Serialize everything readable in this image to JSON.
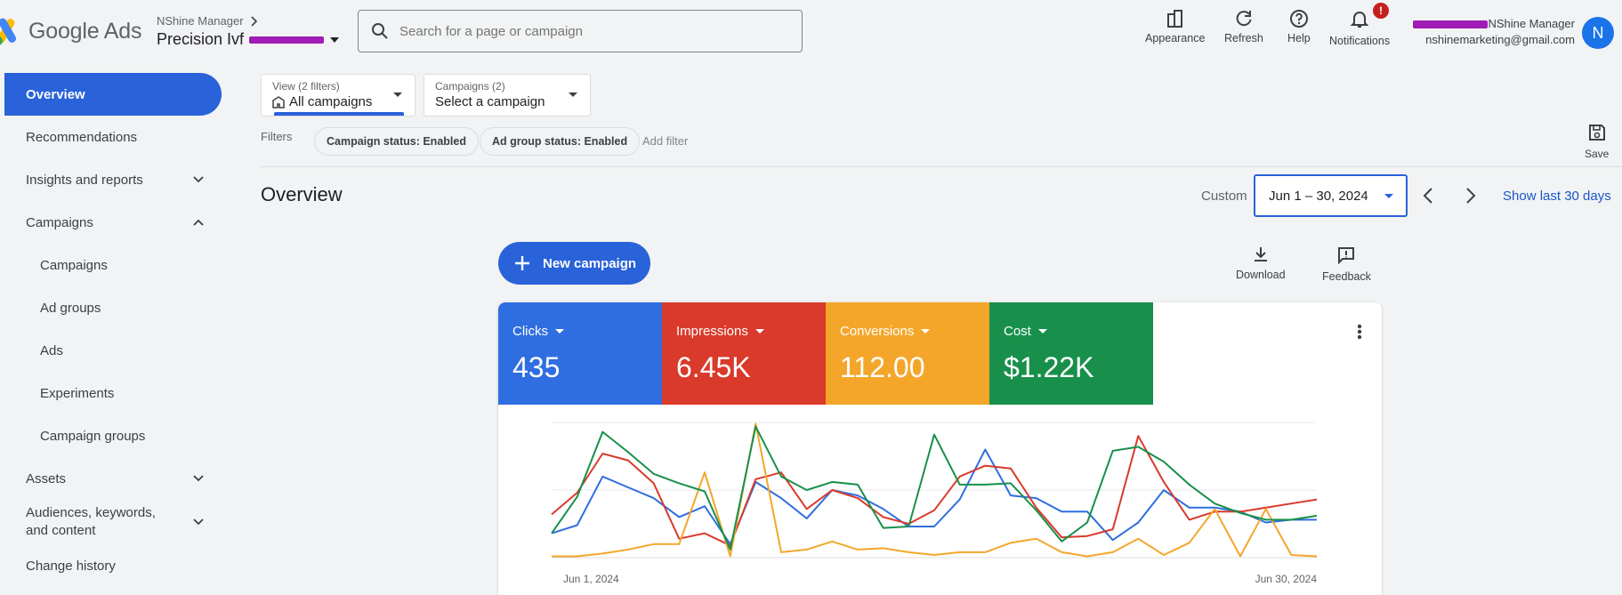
{
  "header": {
    "logo_text": "Google Ads",
    "manager_label": "NShine Manager",
    "account_name": "Precision Ivf",
    "search_placeholder": "Search for a page or campaign",
    "buttons": [
      {
        "label": "Appearance",
        "icon": "appearance-icon"
      },
      {
        "label": "Refresh",
        "icon": "refresh-icon"
      },
      {
        "label": "Help",
        "icon": "help-icon"
      },
      {
        "label": "Notifications",
        "icon": "bell-icon",
        "badge": "!"
      }
    ],
    "user_name": "NShine Manager",
    "user_email": "nshinemarketing@gmail.com",
    "avatar_letter": "N"
  },
  "sidebar": {
    "items": [
      {
        "label": "Overview",
        "active": true
      },
      {
        "label": "Recommendations"
      },
      {
        "label": "Insights and reports",
        "chevron": "down"
      },
      {
        "label": "Campaigns",
        "chevron": "up"
      },
      {
        "label": "Campaigns",
        "sub": true
      },
      {
        "label": "Ad groups",
        "sub": true
      },
      {
        "label": "Ads",
        "sub": true
      },
      {
        "label": "Experiments",
        "sub": true
      },
      {
        "label": "Campaign groups",
        "sub": true
      },
      {
        "label": "Assets",
        "chevron": "down"
      },
      {
        "label": "Audiences, keywords, and content",
        "chevron": "down"
      },
      {
        "label": "Change history"
      }
    ]
  },
  "filters": {
    "view_label": "View (2 filters)",
    "view_value": "All campaigns",
    "campaigns_label": "Campaigns (2)",
    "campaigns_value": "Select a campaign",
    "filters_label": "Filters",
    "chips": [
      "Campaign status: Enabled",
      "Ad group status: Enabled"
    ],
    "add_filter": "Add filter",
    "save_label": "Save"
  },
  "overview": {
    "title": "Overview",
    "custom_label": "Custom",
    "date_range": "Jun 1 – 30, 2024",
    "show_last": "Show last 30 days",
    "new_campaign": "New campaign",
    "download": "Download",
    "feedback": "Feedback"
  },
  "metrics": [
    {
      "label": "Clicks",
      "value": "435",
      "color": "#2f6ee0"
    },
    {
      "label": "Impressions",
      "value": "6.45K",
      "color": "#d93a2b"
    },
    {
      "label": "Conversions",
      "value": "112.00",
      "color": "#f4a62a"
    },
    {
      "label": "Cost",
      "value": "$1.22K",
      "color": "#18904b"
    }
  ],
  "chart_data": {
    "type": "line",
    "x_start": "Jun 1, 2024",
    "x_end": "Jun 30, 2024",
    "ylim": [
      0,
      100
    ],
    "series": [
      {
        "name": "Clicks",
        "color": "#2f6ee0",
        "values": [
          18,
          24,
          60,
          52,
          44,
          30,
          38,
          10,
          56,
          44,
          29,
          50,
          46,
          36,
          23,
          23,
          43,
          80,
          46,
          44,
          34,
          34,
          13,
          26,
          50,
          37,
          37,
          34,
          26,
          28,
          28
        ]
      },
      {
        "name": "Impressions",
        "color": "#d93a2b",
        "values": [
          32,
          48,
          77,
          72,
          55,
          14,
          18,
          9,
          58,
          63,
          36,
          50,
          44,
          30,
          25,
          35,
          60,
          68,
          66,
          37,
          15,
          16,
          21,
          90,
          56,
          28,
          34,
          34,
          37,
          40,
          43
        ]
      },
      {
        "name": "Conversions",
        "color": "#f4a62a",
        "values": [
          1,
          1,
          3,
          6,
          10,
          10,
          63,
          1,
          99,
          4,
          6,
          12,
          6,
          7,
          4,
          2,
          4,
          4,
          11,
          14,
          4,
          1,
          4,
          14,
          2,
          11,
          36,
          1,
          36,
          2,
          1
        ]
      },
      {
        "name": "Cost",
        "color": "#18904b",
        "values": [
          18,
          45,
          93,
          78,
          62,
          55,
          49,
          6,
          97,
          60,
          50,
          56,
          54,
          22,
          23,
          91,
          54,
          54,
          55,
          35,
          12,
          26,
          79,
          82,
          71,
          54,
          40,
          33,
          28,
          28,
          31
        ]
      }
    ]
  }
}
